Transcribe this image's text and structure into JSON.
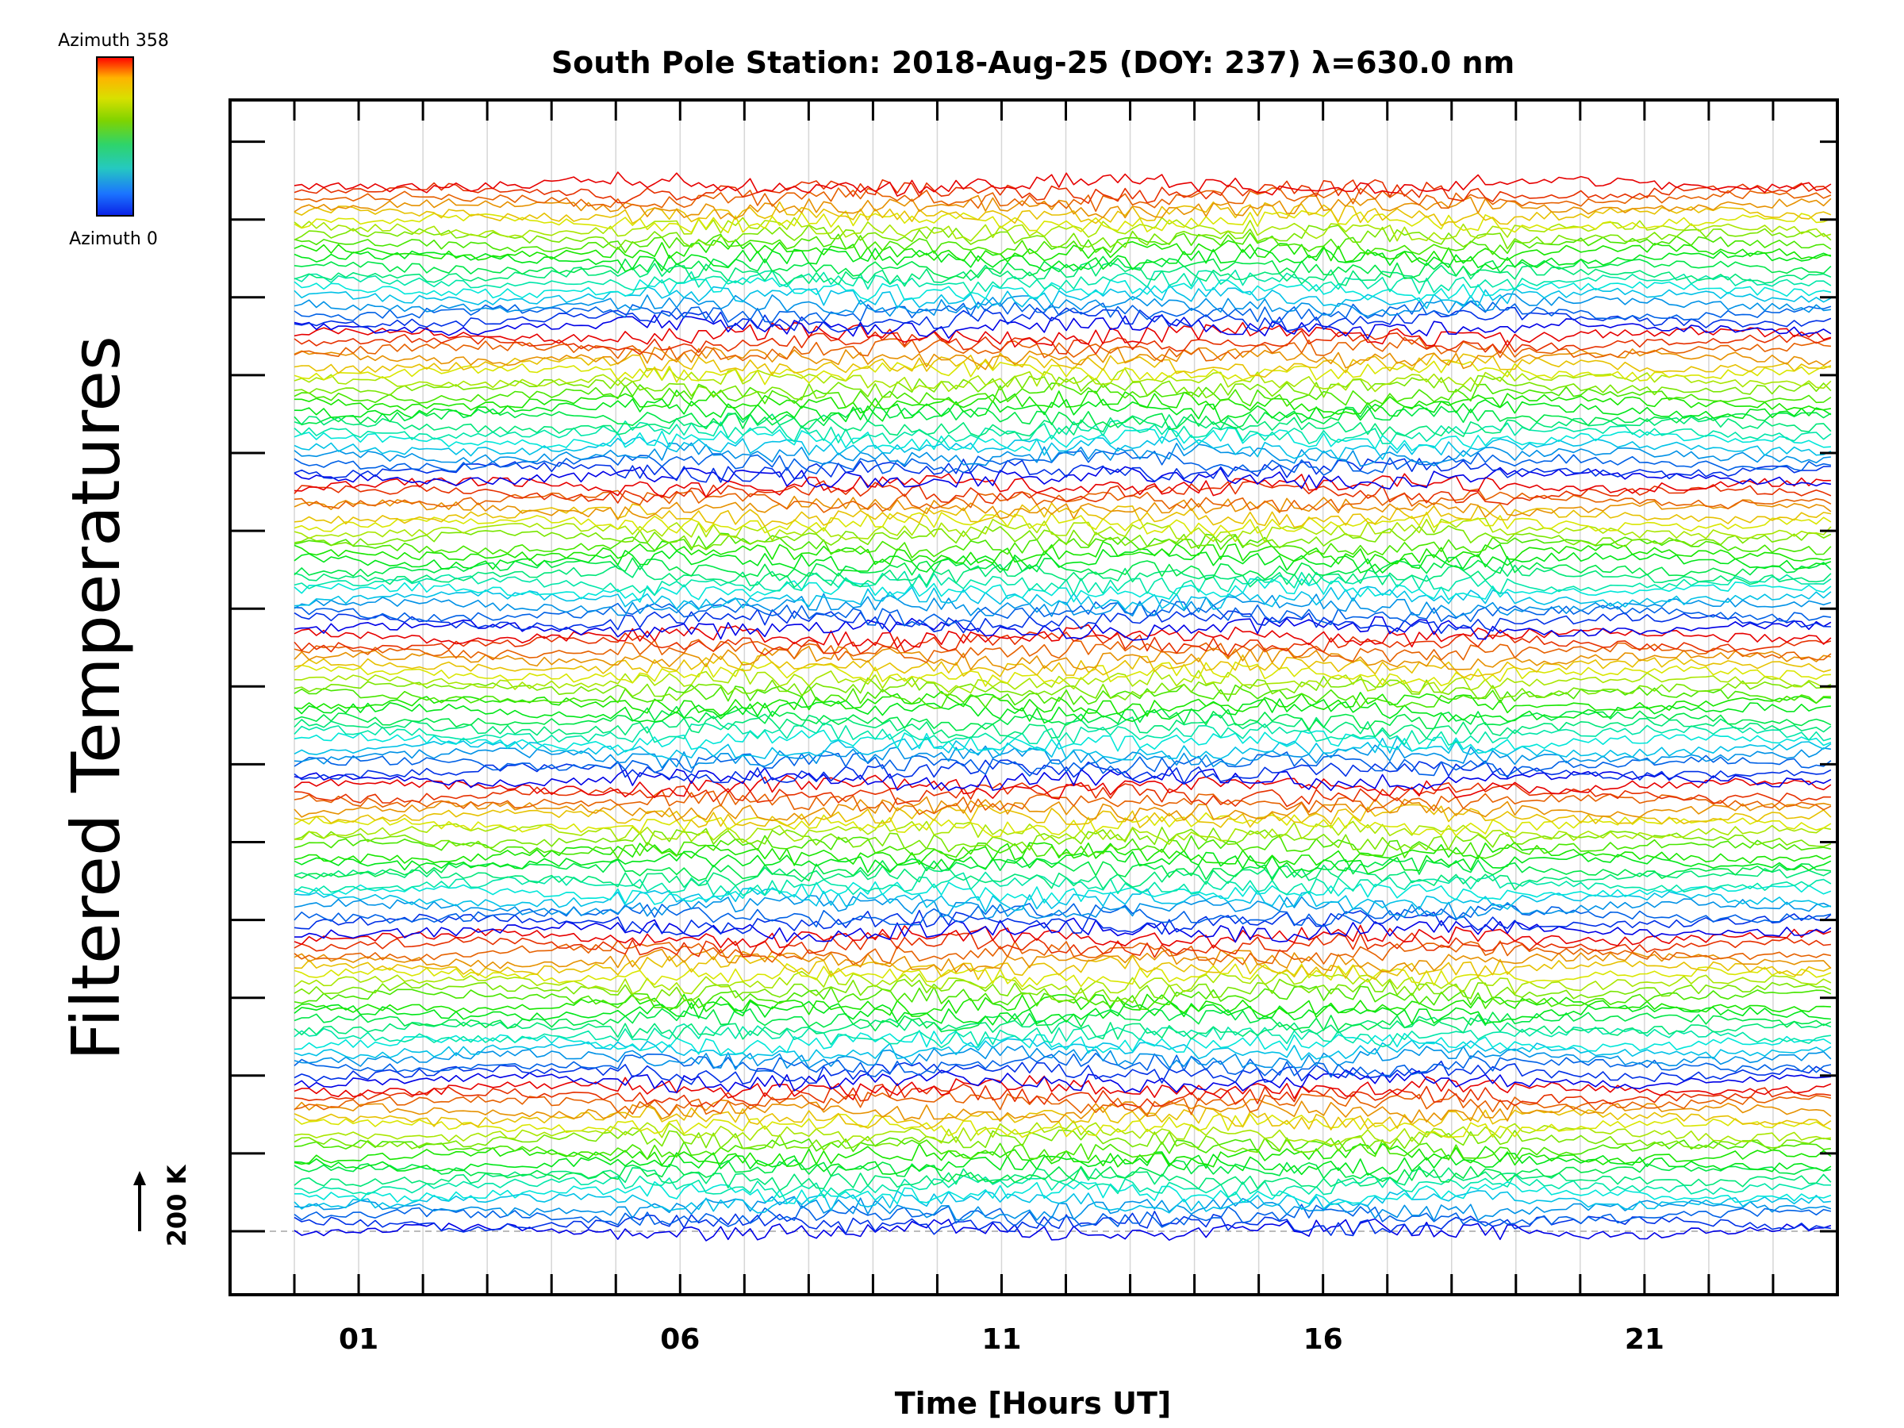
{
  "chart_data": {
    "type": "line",
    "title": "South Pole Station: 2018-Aug-25 (DOY: 237) λ=630.0 nm",
    "xlabel": "Time [Hours UT]",
    "ylabel": "Filtered Temperatures",
    "x_unit": "hours UT",
    "xlim": [
      -1,
      24
    ],
    "x_tick_labels": [
      "01",
      "06",
      "11",
      "16",
      "21"
    ],
    "x_tick_values": [
      1,
      6,
      11,
      16,
      21
    ],
    "data_x_range": [
      0,
      23.9
    ],
    "grid": true,
    "stacked_offset_traces": true,
    "trace_count": 140,
    "color_cycle_length": 20,
    "colormap": "rainbow (blue → cyan → green → yellow → red)",
    "colorbar": {
      "top_label": "Azimuth 358",
      "bottom_label": "Azimuth 0",
      "colors": [
        "#ff0000",
        "#ffb300",
        "#d8e000",
        "#7fd300",
        "#2ed46a",
        "#25c9c0",
        "#1b74ff",
        "#0a20e6"
      ]
    },
    "scale_bar": {
      "label": "200 K"
    },
    "baseline_style": "dashed grey"
  }
}
